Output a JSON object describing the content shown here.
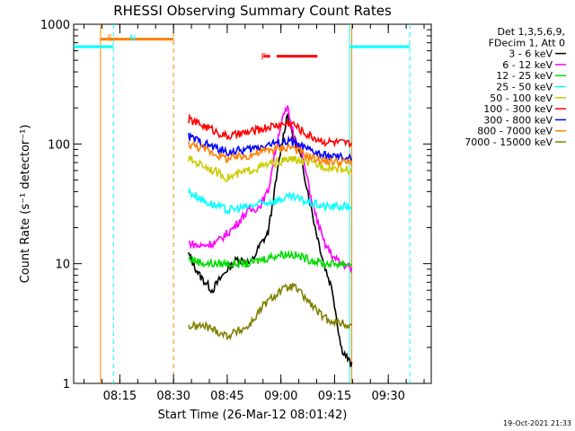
{
  "chart_data": {
    "type": "line",
    "title": "RHESSI Observing Summary Count Rates",
    "xlabel": "Start Time (26-Mar-12 08:01:42)",
    "ylabel": "Count Rate (s⁻¹ detector⁻¹)",
    "yscale": "log",
    "ylim": [
      1,
      1000
    ],
    "xlim": [
      8.035,
      9.7
    ],
    "x_unit": "hours UT",
    "yticks": [
      {
        "value": 1,
        "label": "1"
      },
      {
        "value": 10,
        "label": "10"
      },
      {
        "value": 100,
        "label": "100"
      },
      {
        "value": 1000,
        "label": "1000"
      }
    ],
    "xticks": [
      {
        "value": 8.25,
        "label": "08:15"
      },
      {
        "value": 8.5,
        "label": "08:30"
      },
      {
        "value": 8.75,
        "label": "08:45"
      },
      {
        "value": 9.0,
        "label": "09:00"
      },
      {
        "value": 9.25,
        "label": "09:15"
      },
      {
        "value": 9.5,
        "label": "09:30"
      }
    ],
    "legend": {
      "header": [
        "Det 1,3,5,6,9,",
        "FDecim 1, Att 0"
      ],
      "placement": "top-right outside"
    },
    "series": [
      {
        "name": "3 - 6 keV",
        "color": "#000000",
        "x": [
          8.57,
          8.62,
          8.68,
          8.75,
          8.8,
          8.86,
          8.9,
          8.94,
          8.97,
          9.0,
          9.03,
          9.06,
          9.09,
          9.12,
          9.16,
          9.2,
          9.24,
          9.28,
          9.33
        ],
        "y": [
          12,
          8,
          6,
          9,
          11,
          10,
          14,
          18,
          40,
          90,
          180,
          110,
          80,
          45,
          20,
          10,
          6,
          2,
          1.4
        ]
      },
      {
        "name": "6 - 12 keV",
        "color": "#ff00ff",
        "x": [
          8.57,
          8.62,
          8.7,
          8.78,
          8.84,
          8.9,
          8.94,
          8.97,
          9.0,
          9.03,
          9.06,
          9.1,
          9.15,
          9.2,
          9.25,
          9.33
        ],
        "y": [
          15,
          14,
          15,
          20,
          27,
          30,
          40,
          80,
          150,
          200,
          120,
          80,
          30,
          15,
          11,
          9
        ]
      },
      {
        "name": "12 - 25 keV",
        "color": "#00dd00",
        "x": [
          8.57,
          8.65,
          8.75,
          8.85,
          8.92,
          9.0,
          9.05,
          9.12,
          9.2,
          9.33
        ],
        "y": [
          11,
          10,
          10,
          10,
          11,
          12,
          12,
          11,
          10,
          10
        ]
      },
      {
        "name": "25 - 50 keV",
        "color": "#00ffff",
        "x": [
          8.57,
          8.65,
          8.75,
          8.85,
          8.95,
          9.05,
          9.12,
          9.2,
          9.33
        ],
        "y": [
          40,
          33,
          28,
          30,
          33,
          36,
          33,
          30,
          30
        ]
      },
      {
        "name": "50 - 100 keV",
        "color": "#cccc00",
        "x": [
          8.57,
          8.65,
          8.75,
          8.85,
          8.95,
          9.05,
          9.12,
          9.2,
          9.33
        ],
        "y": [
          75,
          65,
          52,
          60,
          68,
          75,
          70,
          65,
          60
        ]
      },
      {
        "name": "100 - 300 keV",
        "color": "#ff0000",
        "x": [
          8.57,
          8.65,
          8.75,
          8.85,
          8.95,
          9.05,
          9.12,
          9.2,
          9.33
        ],
        "y": [
          160,
          140,
          115,
          125,
          140,
          150,
          120,
          105,
          100
        ]
      },
      {
        "name": "300 - 800 keV",
        "color": "#0000ff",
        "x": [
          8.57,
          8.65,
          8.75,
          8.85,
          8.95,
          9.05,
          9.12,
          9.2,
          9.33
        ],
        "y": [
          115,
          100,
          85,
          90,
          100,
          105,
          90,
          80,
          75
        ]
      },
      {
        "name": "800 - 7000 keV",
        "color": "#ff8000",
        "x": [
          8.57,
          8.65,
          8.75,
          8.85,
          8.95,
          9.05,
          9.12,
          9.2,
          9.33
        ],
        "y": [
          100,
          90,
          75,
          80,
          90,
          95,
          80,
          72,
          70
        ]
      },
      {
        "name": "7000 - 15000 keV",
        "color": "#808000",
        "x": [
          8.57,
          8.65,
          8.75,
          8.85,
          8.92,
          9.0,
          9.06,
          9.12,
          9.2,
          9.33
        ],
        "y": [
          3,
          3,
          2.5,
          3,
          4.5,
          6,
          6.5,
          5,
          3.5,
          3
        ]
      }
    ],
    "annotations": [
      {
        "label": "S",
        "color": "#ff8000",
        "x": 8.205
      },
      {
        "label": "N",
        "color": "#00ffff",
        "x": 8.31
      },
      {
        "label": "F",
        "color": "#ff0000",
        "x": 8.92
      }
    ],
    "segments": [
      {
        "name": "saa",
        "color": "#ff8000",
        "x": [
          8.16,
          8.5
        ],
        "y": 750
      },
      {
        "name": "night-left",
        "color": "#00ffff",
        "x": [
          8.035,
          8.22
        ],
        "y": 650
      },
      {
        "name": "night-right",
        "color": "#00ffff",
        "x": [
          9.32,
          9.6
        ],
        "y": 650
      },
      {
        "name": "flare-short",
        "color": "#ff0000",
        "x": [
          8.92,
          8.95
        ],
        "y": 540
      },
      {
        "name": "flare-main",
        "color": "#ff0000",
        "x": [
          8.98,
          9.17
        ],
        "y": 540
      }
    ],
    "vlines": [
      {
        "name": "saa-start",
        "color": "#ff8000",
        "x": 8.16,
        "style": "solid"
      },
      {
        "name": "saa-end",
        "color": "#ff8000",
        "x": 8.5,
        "style": "dashed"
      },
      {
        "name": "night-end",
        "color": "#00ffff",
        "x": 8.22,
        "style": "dashed"
      },
      {
        "name": "night-start",
        "color": "#00ffff",
        "x": 9.32,
        "style": "solid"
      },
      {
        "name": "night-end-2",
        "color": "#00ffff",
        "x": 9.6,
        "style": "dashed"
      },
      {
        "name": "data-end",
        "color": "#ff8000",
        "x": 9.33,
        "style": "solid"
      }
    ],
    "timestamp": "19-Oct-2021 21:33"
  }
}
